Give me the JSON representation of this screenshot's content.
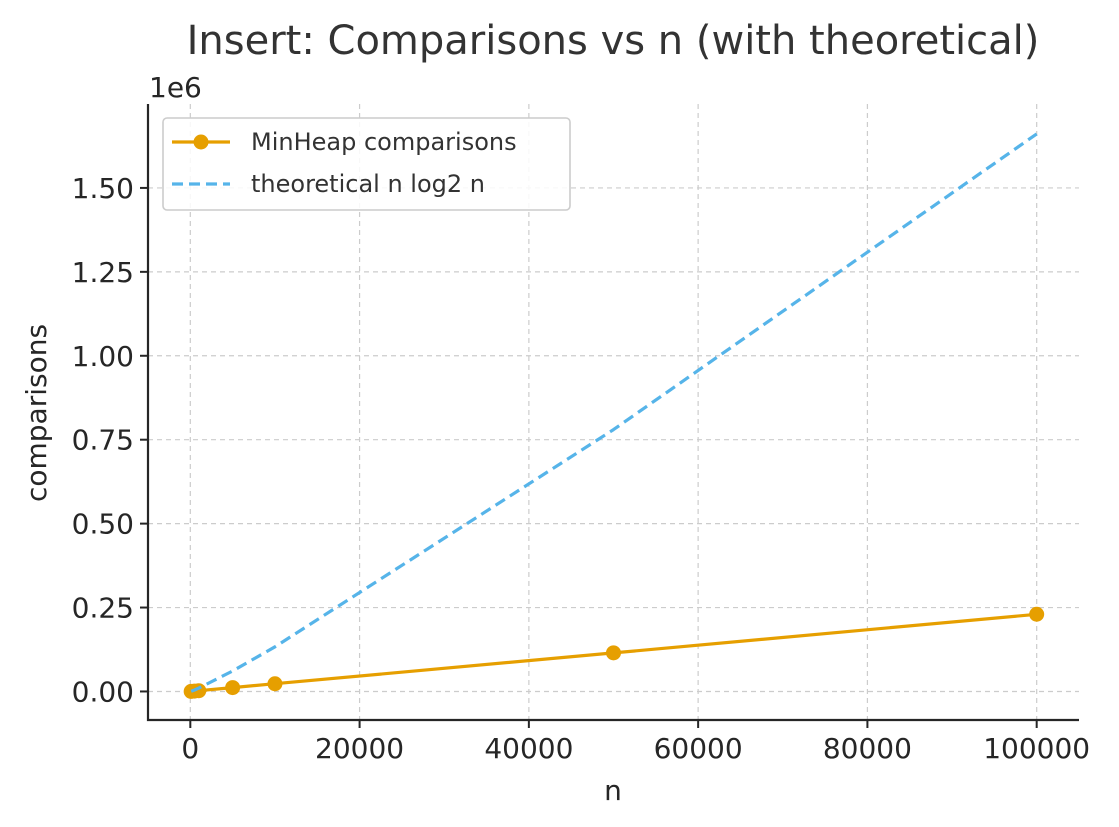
{
  "chart_data": {
    "type": "line",
    "title": "Insert: Comparisons vs n (with theoretical)",
    "xlabel": "n",
    "ylabel": "comparisons",
    "y_offset_label": "1e6",
    "xlim": [
      -5000,
      105000
    ],
    "ylim": [
      -0.085,
      1.75
    ],
    "x_ticks": [
      0,
      20000,
      40000,
      60000,
      80000,
      100000
    ],
    "x_tick_labels": [
      "0",
      "20000",
      "40000",
      "60000",
      "80000",
      "100000"
    ],
    "y_ticks": [
      0.0,
      0.25,
      0.5,
      0.75,
      1.0,
      1.25,
      1.5
    ],
    "y_tick_labels": [
      "0.00",
      "0.25",
      "0.50",
      "0.75",
      "1.00",
      "1.25",
      "1.50"
    ],
    "grid": true,
    "legend_position": "top-left",
    "series": [
      {
        "name": "MinHeap comparisons",
        "style": "solid-markers",
        "color": "#E69F00",
        "x": [
          100,
          500,
          1000,
          5000,
          10000,
          50000,
          100000
        ],
        "y": [
          0.0002,
          0.0011,
          0.0023,
          0.0115,
          0.023,
          0.115,
          0.23
        ]
      },
      {
        "name": "theoretical n log2 n",
        "style": "dashed",
        "color": "#56B4E9",
        "x": [
          100,
          500,
          1000,
          5000,
          10000,
          50000,
          100000
        ],
        "y": [
          0.00066,
          0.0045,
          0.01,
          0.061,
          0.133,
          0.78,
          1.661
        ]
      }
    ]
  }
}
